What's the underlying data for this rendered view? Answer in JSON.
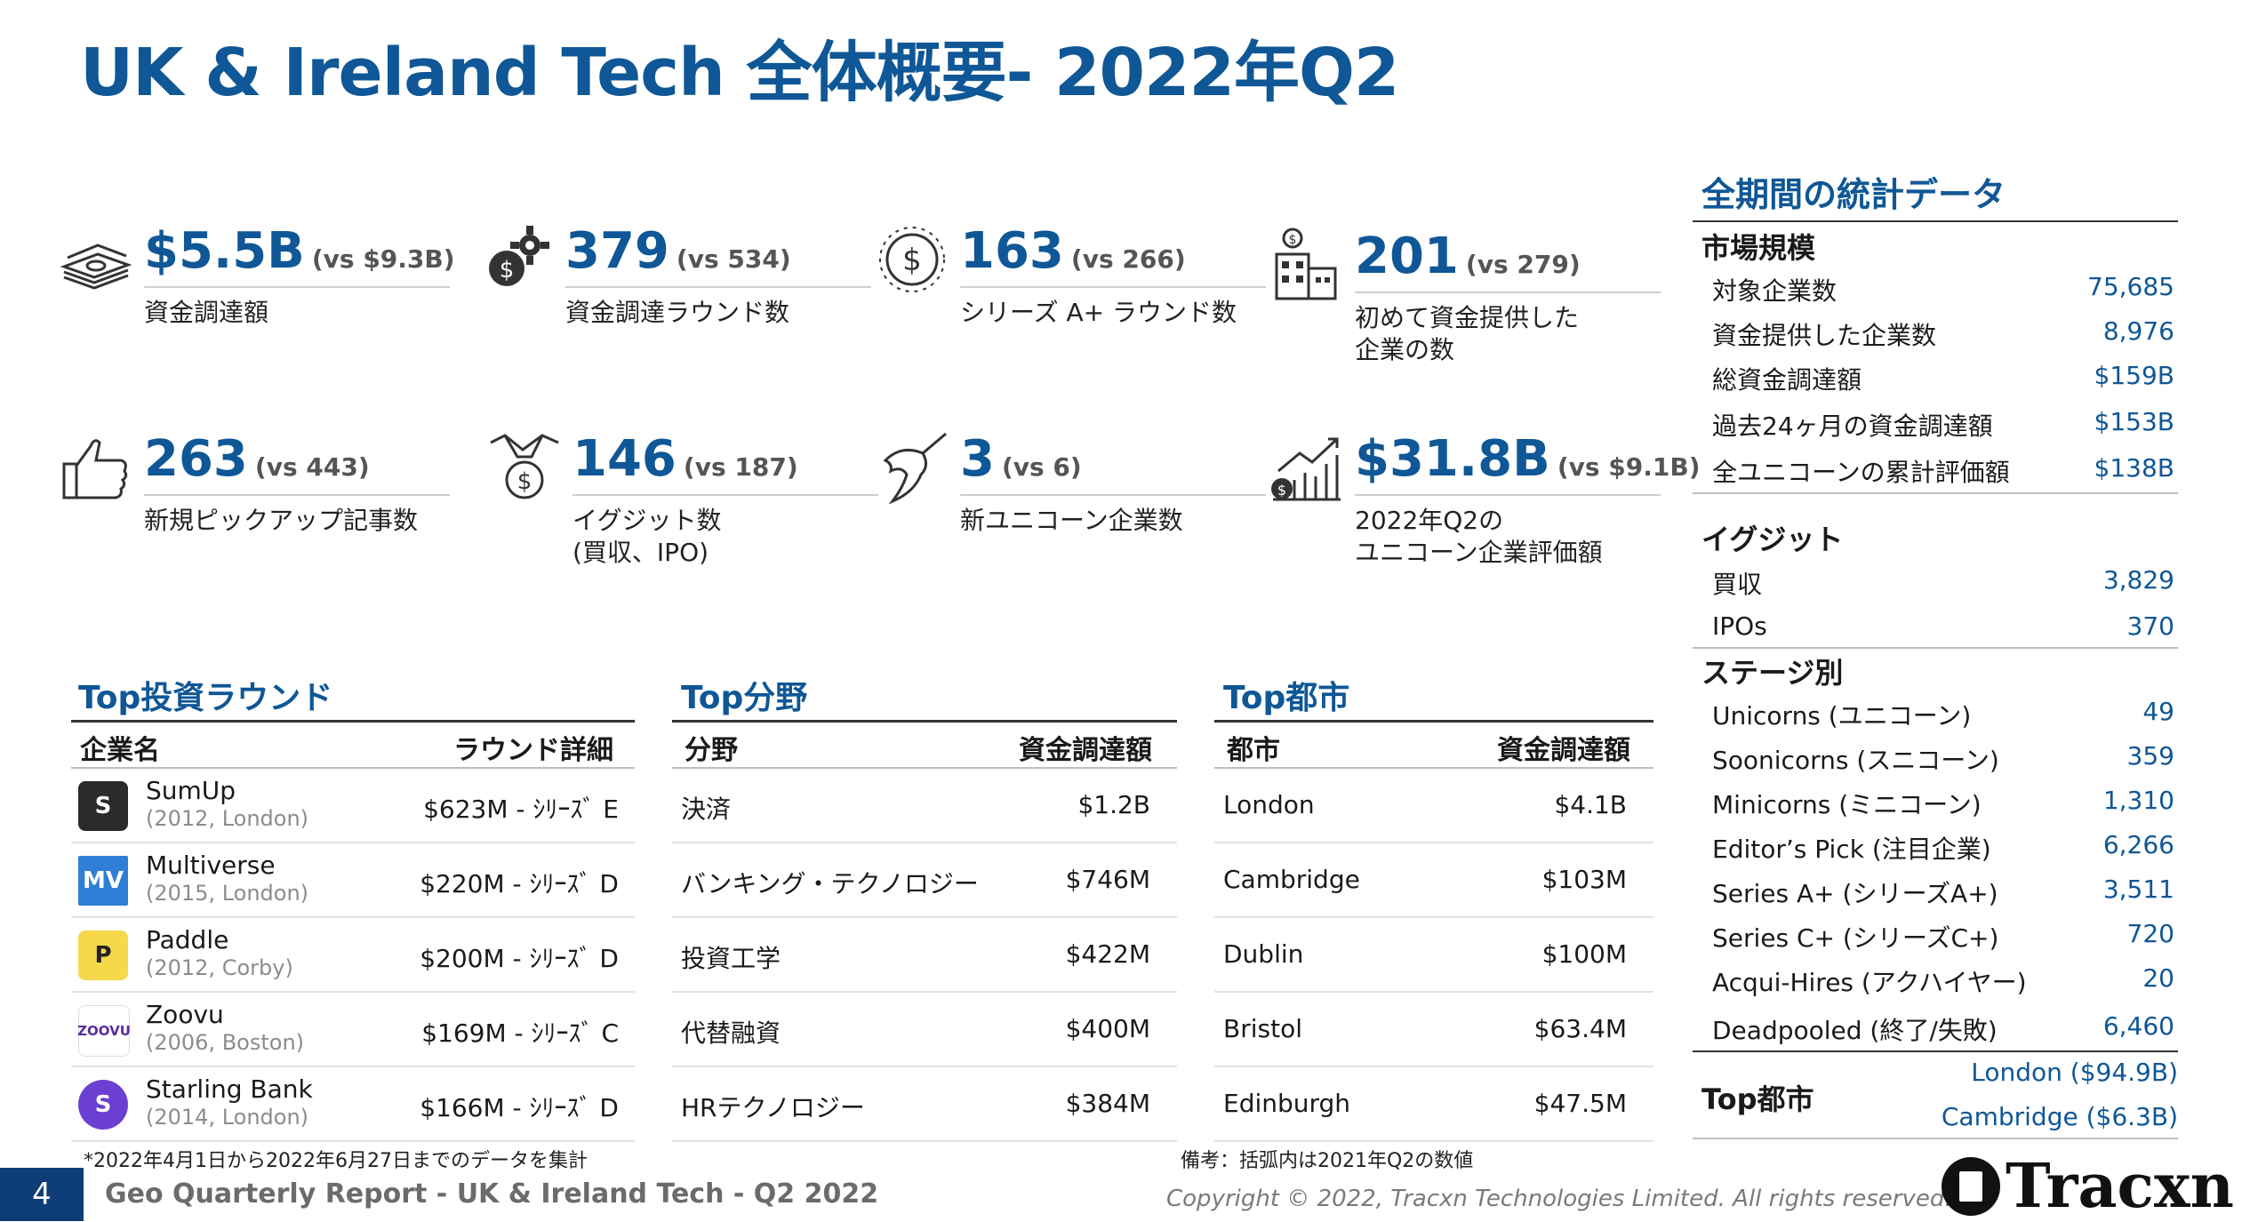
{
  "title": "UK & Ireland Tech 全体概要- 2022年Q2",
  "stats": [
    {
      "value": "$5.5B",
      "vs": "(vs $9.3B)",
      "label": "資金調達額",
      "icon": "money-stack-icon"
    },
    {
      "value": "379",
      "vs": "(vs 534)",
      "label": "資金調達ラウンド数",
      "icon": "dollar-gear-icon"
    },
    {
      "value": "163",
      "vs": "(vs 266)",
      "label": "シリーズ A+ ラウンド数",
      "icon": "dollar-circle-icon"
    },
    {
      "value": "201",
      "vs": "(vs 279)",
      "label": "初めて資金提供した\n企業の数",
      "icon": "building-dollar-icon"
    },
    {
      "value": "263",
      "vs": "(vs 443)",
      "label": "新規ピックアップ記事数",
      "icon": "thumbs-up-icon"
    },
    {
      "value": "146",
      "vs": "(vs 187)",
      "label": "イグジット数\n(買収、IPO)",
      "icon": "handshake-dollar-icon"
    },
    {
      "value": "3",
      "vs": "(vs 6)",
      "label": "新ユニコーン企業数",
      "icon": "unicorn-icon"
    },
    {
      "value": "$31.8B",
      "vs": "(vs $9.1B)",
      "label": "2022年Q2の\nユニコーン企業評価額",
      "icon": "growth-chart-icon"
    }
  ],
  "top_rounds": {
    "title": "Top投資ラウンド",
    "col1": "企業名",
    "col2": "ラウンド詳細",
    "rows": [
      {
        "name": "SumUp",
        "sub": "(2012, London)",
        "detail": "$623M - ｼﾘｰｽﾞ E",
        "logo_color": "#2b2b2b",
        "logo_text": "S"
      },
      {
        "name": "Multiverse",
        "sub": "(2015, London)",
        "detail": "$220M - ｼﾘｰｽﾞ D",
        "logo_color": "#2f7fd6",
        "logo_text": "MV"
      },
      {
        "name": "Paddle",
        "sub": "(2012, Corby)",
        "detail": "$200M - ｼﾘｰｽﾞ D",
        "logo_color": "#f6d84a",
        "logo_text": "P"
      },
      {
        "name": "Zoovu",
        "sub": "(2006, Boston)",
        "detail": "$169M - ｼﾘｰｽﾞ C",
        "logo_color": "#5a2ca0",
        "logo_text": "ZOOVU"
      },
      {
        "name": "Starling Bank",
        "sub": "(2014, London)",
        "detail": "$166M - ｼﾘｰｽﾞ D",
        "logo_color": "#6b3fd1",
        "logo_text": "S"
      }
    ]
  },
  "top_sectors": {
    "title": "Top分野",
    "col1": "分野",
    "col2": "資金調達額",
    "rows": [
      {
        "name": "決済",
        "amount": "$1.2B"
      },
      {
        "name": "バンキング・テクノロジー",
        "amount": "$746M"
      },
      {
        "name": "投資工学",
        "amount": "$422M"
      },
      {
        "name": "代替融資",
        "amount": "$400M"
      },
      {
        "name": "HRテクノロジー",
        "amount": "$384M"
      }
    ]
  },
  "top_cities": {
    "title": "Top都市",
    "col1": "都市",
    "col2": "資金調達額",
    "rows": [
      {
        "name": "London",
        "amount": "$4.1B"
      },
      {
        "name": "Cambridge",
        "amount": "$103M"
      },
      {
        "name": "Dublin",
        "amount": "$100M"
      },
      {
        "name": "Bristol",
        "amount": "$63.4M"
      },
      {
        "name": "Edinburgh",
        "amount": "$47.5M"
      }
    ]
  },
  "sidebar": {
    "title": "全期間の統計データ",
    "market": {
      "heading": "市場規模",
      "rows": [
        {
          "k": "対象企業数",
          "v": "75,685"
        },
        {
          "k": "資金提供した企業数",
          "v": "8,976"
        },
        {
          "k": "総資金調達額",
          "v": "$159B"
        },
        {
          "k": "過去24ヶ月の資金調達額",
          "v": "$153B"
        },
        {
          "k": "全ユニコーンの累計評価額",
          "v": "$138B"
        }
      ]
    },
    "exits": {
      "heading": "イグジット",
      "rows": [
        {
          "k": "買収",
          "v": "3,829"
        },
        {
          "k": "IPOs",
          "v": "370"
        }
      ]
    },
    "stages": {
      "heading": "ステージ別",
      "rows": [
        {
          "k": "Unicorns (ユニコーン)",
          "v": "49"
        },
        {
          "k": "Soonicorns (スニコーン)",
          "v": "359"
        },
        {
          "k": "Minicorns (ミニコーン)",
          "v": "1,310"
        },
        {
          "k": "Editor’s Pick (注目企業)",
          "v": "6,266"
        },
        {
          "k": "Series A+ (シリーズA+)",
          "v": "3,511"
        },
        {
          "k": "Series C+ (シリーズC+)",
          "v": "720"
        },
        {
          "k": "Acqui-Hires (アクハイヤー)",
          "v": "20"
        },
        {
          "k": "Deadpooled (終了/失敗)",
          "v": "6,460"
        }
      ]
    },
    "top_cities": {
      "heading": "Top都市",
      "values": [
        "London ($94.9B)",
        "Cambridge ($6.3B)"
      ]
    }
  },
  "footnote_left": "*2022年4月1日から2022年6月27日までのデータを集計",
  "footnote_right": "備考：括弧内は2021年Q2の数値",
  "page_number": "4",
  "footer_title": "Geo Quarterly Report - UK & Ireland Tech - Q2 2022",
  "copyright": "Copyright © 2022, Tracxn Technologies Limited. All rights reserved.",
  "brand": "Tracxn",
  "colors": {
    "accent": "#0f5796",
    "page_tab": "#0f3d78"
  }
}
